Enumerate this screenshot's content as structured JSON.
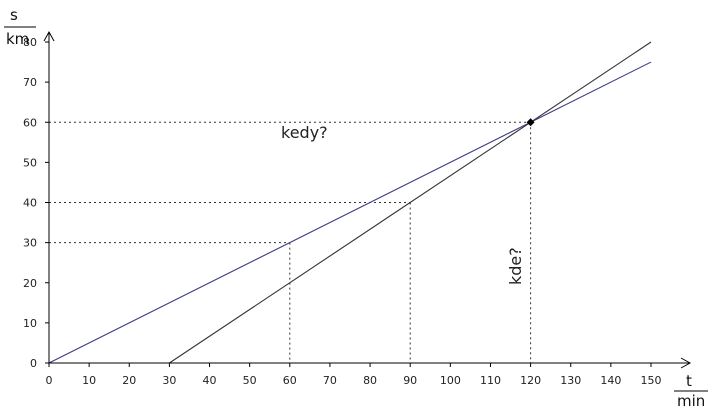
{
  "chart_data": {
    "type": "line",
    "title": "",
    "xlabel": {
      "top": "t",
      "bottom": "min"
    },
    "ylabel": {
      "top": "s",
      "bottom": "km"
    },
    "xlim": [
      0,
      150
    ],
    "ylim": [
      0,
      80
    ],
    "x_ticks": [
      0,
      10,
      20,
      30,
      40,
      50,
      60,
      70,
      80,
      90,
      100,
      110,
      120,
      130,
      140,
      150
    ],
    "y_ticks": [
      0,
      10,
      20,
      30,
      40,
      50,
      60,
      70,
      80
    ],
    "grid": false,
    "series": [
      {
        "color": "#3a3a8c",
        "points": [
          [
            0,
            0
          ],
          [
            150,
            75
          ]
        ]
      },
      {
        "color": "#333333",
        "points": [
          [
            30,
            0
          ],
          [
            150,
            80
          ]
        ]
      }
    ],
    "intersection": {
      "x": 120,
      "y": 60
    },
    "guides": [
      {
        "x": 60,
        "y": 30
      },
      {
        "x": 90,
        "y": 40
      },
      {
        "x": 120,
        "y": 60
      }
    ],
    "annotations": {
      "when": "kedy?",
      "where": "kde?"
    },
    "colors": {
      "axis": "#000000",
      "guide": "#333333",
      "marker": "#000000"
    }
  }
}
